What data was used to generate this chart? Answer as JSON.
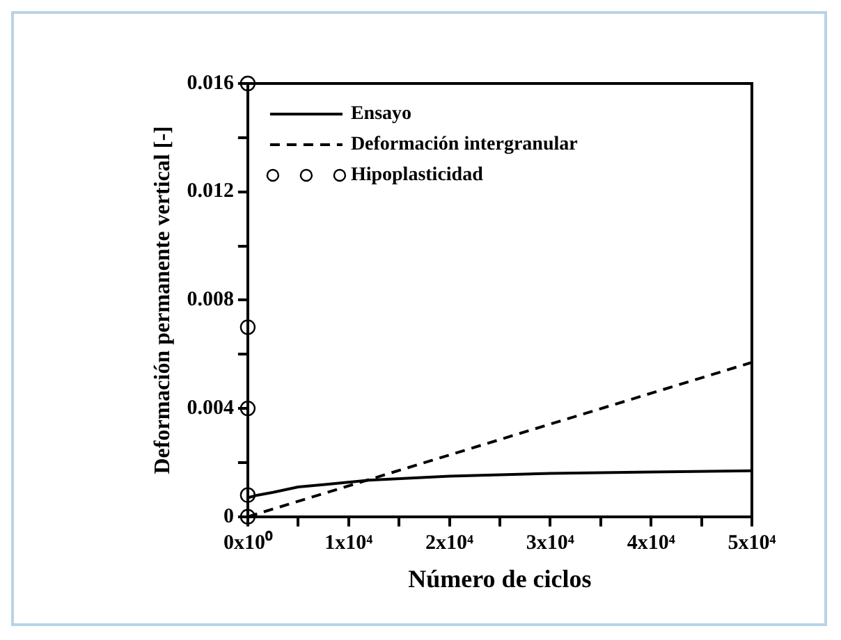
{
  "chart_data": {
    "type": "line",
    "xlabel": "Número de ciclos",
    "ylabel": "Deformación permanente vertical [-]",
    "xlim": [
      0,
      50000
    ],
    "xticks": [
      {
        "value": 0,
        "label": "0x10⁰"
      },
      {
        "value": 5000,
        "label": null
      },
      {
        "value": 10000,
        "label": "1x10⁴"
      },
      {
        "value": 15000,
        "label": null
      },
      {
        "value": 20000,
        "label": "2x10⁴"
      },
      {
        "value": 25000,
        "label": null
      },
      {
        "value": 30000,
        "label": "3x10⁴"
      },
      {
        "value": 35000,
        "label": null
      },
      {
        "value": 40000,
        "label": "4x10⁴"
      },
      {
        "value": 45000,
        "label": null
      },
      {
        "value": 50000,
        "label": "5x10⁴"
      }
    ],
    "ylim": [
      0,
      0.016
    ],
    "yticks": [
      0,
      {
        "value": 0.002,
        "label": null
      },
      0.004,
      {
        "value": 0.006,
        "label": null
      },
      0.008,
      {
        "value": 0.01,
        "label": null
      },
      0.012,
      {
        "value": 0.014,
        "label": null
      },
      0.016
    ],
    "grid": false,
    "legend": "top left",
    "series": [
      {
        "name": "Ensayo",
        "color": "#000000",
        "line_style": "solid",
        "marker": "none",
        "x": [
          0,
          1000,
          2500,
          5000,
          8000,
          12000,
          20000,
          30000,
          40000,
          50000
        ],
        "values": [
          0.0007,
          0.0008,
          0.0009,
          0.0011,
          0.0012,
          0.00135,
          0.0015,
          0.0016,
          0.00165,
          0.0017
        ]
      },
      {
        "name": "Deformación intergranular",
        "color": "#000000",
        "line_style": "dashed",
        "marker": "none",
        "x": [
          0,
          50000
        ],
        "values": [
          0,
          0.0057
        ]
      },
      {
        "name": "Hipoplasticidad",
        "type": "scatter",
        "color": "#000000",
        "marker": "circle",
        "x": [
          0,
          0,
          0,
          0,
          0
        ],
        "values": [
          0,
          0.0008,
          0.004,
          0.007,
          0.016
        ]
      }
    ]
  }
}
